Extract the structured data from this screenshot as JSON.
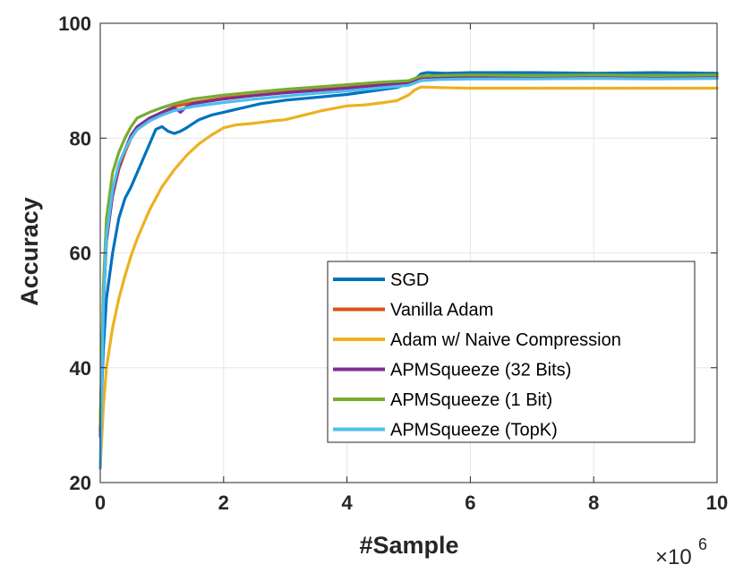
{
  "chart_data": {
    "type": "line",
    "title": "",
    "xlabel": "#Sample",
    "ylabel": "Accuracy",
    "x_multiplier_label": "×10",
    "x_multiplier_exponent": "6",
    "xlim": [
      0,
      10
    ],
    "ylim": [
      20,
      100
    ],
    "x_ticks": [
      0,
      2,
      4,
      6,
      8,
      10
    ],
    "y_ticks": [
      20,
      40,
      60,
      80,
      100
    ],
    "grid": true,
    "legend_position": "bottom-right",
    "series": [
      {
        "name": "SGD",
        "color": "#0072BD",
        "x": [
          0,
          0.05,
          0.1,
          0.2,
          0.3,
          0.4,
          0.5,
          0.6,
          0.7,
          0.8,
          0.9,
          1.0,
          1.1,
          1.2,
          1.3,
          1.4,
          1.5,
          1.6,
          1.8,
          2.0,
          2.2,
          2.4,
          2.6,
          2.8,
          3.0,
          3.3,
          3.6,
          4.0,
          4.4,
          4.8,
          5.0,
          5.1,
          5.2,
          5.3,
          5.6,
          6.0,
          7.0,
          8.0,
          9.0,
          10.0
        ],
        "y": [
          29,
          43,
          52,
          60,
          66,
          69.5,
          71.5,
          74,
          76.5,
          79,
          81.5,
          82,
          81.2,
          80.8,
          81.2,
          81.8,
          82.5,
          83.2,
          84,
          84.5,
          85,
          85.5,
          86,
          86.3,
          86.6,
          86.9,
          87.2,
          87.6,
          88.2,
          88.8,
          89.5,
          90.2,
          91.2,
          91.4,
          91.3,
          91.4,
          91.4,
          91.3,
          91.4,
          91.3
        ]
      },
      {
        "name": "Vanilla Adam",
        "color": "#D95319",
        "x": [
          0,
          0.05,
          0.1,
          0.2,
          0.3,
          0.4,
          0.5,
          0.6,
          0.8,
          1.0,
          1.2,
          1.5,
          2.0,
          2.5,
          3.0,
          3.5,
          4.0,
          4.5,
          5.0,
          5.2,
          5.5,
          6.0,
          7.0,
          8.0,
          9.0,
          10.0
        ],
        "y": [
          30,
          52,
          63,
          70,
          74.5,
          77.5,
          80,
          81.5,
          83,
          84.5,
          85.5,
          86.2,
          87,
          87.5,
          88,
          88.4,
          88.8,
          89.3,
          89.7,
          90.5,
          90.8,
          90.8,
          90.9,
          90.8,
          90.9,
          90.8
        ]
      },
      {
        "name": "Adam w/ Naive Compression",
        "color": "#EDB120",
        "x": [
          0,
          0.05,
          0.1,
          0.2,
          0.3,
          0.4,
          0.5,
          0.6,
          0.7,
          0.8,
          0.9,
          1.0,
          1.2,
          1.4,
          1.6,
          1.8,
          2.0,
          2.2,
          2.5,
          2.8,
          3.0,
          3.3,
          3.6,
          4.0,
          4.3,
          4.6,
          4.8,
          5.0,
          5.1,
          5.2,
          5.5,
          6.0,
          7.0,
          8.0,
          9.0,
          10.0
        ],
        "y": [
          22.5,
          33,
          40,
          47,
          52,
          56,
          59.5,
          62.5,
          65,
          67.5,
          69.5,
          71.5,
          74.5,
          77,
          79,
          80.5,
          81.8,
          82.3,
          82.6,
          83,
          83.2,
          84,
          84.8,
          85.6,
          85.8,
          86.2,
          86.5,
          87.5,
          88.4,
          88.9,
          88.8,
          88.7,
          88.7,
          88.7,
          88.7,
          88.7
        ]
      },
      {
        "name": "APMSqueeze (32 Bits)",
        "color": "#7E2F8E",
        "x": [
          0,
          0.05,
          0.1,
          0.2,
          0.3,
          0.4,
          0.5,
          0.6,
          0.8,
          1.0,
          1.2,
          1.3,
          1.4,
          1.5,
          2.0,
          2.5,
          3.0,
          3.5,
          4.0,
          4.5,
          5.0,
          5.2,
          5.5,
          6.0,
          7.0,
          8.0,
          9.0,
          10.0
        ],
        "y": [
          28,
          50,
          62,
          70,
          75,
          78,
          80.5,
          82,
          83.5,
          84.5,
          85.3,
          84.5,
          85.5,
          86,
          86.8,
          87.4,
          87.9,
          88.3,
          88.7,
          89.2,
          89.6,
          90.6,
          90.6,
          90.6,
          90.6,
          90.5,
          90.6,
          90.5
        ]
      },
      {
        "name": "APMSqueeze (1 Bit)",
        "color": "#77AC30",
        "x": [
          0,
          0.05,
          0.1,
          0.2,
          0.3,
          0.4,
          0.5,
          0.6,
          0.8,
          1.0,
          1.2,
          1.5,
          2.0,
          2.5,
          3.0,
          3.5,
          4.0,
          4.5,
          5.0,
          5.2,
          5.5,
          6.0,
          7.0,
          8.0,
          9.0,
          10.0
        ],
        "y": [
          30,
          54,
          66,
          74,
          77.5,
          80,
          82,
          83.5,
          84.5,
          85.3,
          86,
          86.8,
          87.5,
          88,
          88.5,
          88.9,
          89.3,
          89.7,
          90,
          90.8,
          90.9,
          91,
          90.9,
          91,
          90.9,
          91
        ]
      },
      {
        "name": "APMSqueeze (TopK)",
        "color": "#4DBEEE",
        "x": [
          0,
          0.05,
          0.1,
          0.2,
          0.3,
          0.4,
          0.5,
          0.6,
          0.8,
          1.0,
          1.2,
          1.5,
          2.0,
          2.5,
          3.0,
          3.5,
          4.0,
          4.5,
          5.0,
          5.2,
          5.5,
          6.0,
          7.0,
          8.0,
          9.0,
          10.0
        ],
        "y": [
          22.5,
          50,
          63,
          71,
          75.5,
          78,
          80,
          81.5,
          83,
          84,
          84.8,
          85.5,
          86.2,
          86.8,
          87.3,
          87.8,
          88.2,
          88.7,
          89.2,
          90,
          90.2,
          90.3,
          90.3,
          90.4,
          90.3,
          90.4
        ]
      }
    ]
  }
}
